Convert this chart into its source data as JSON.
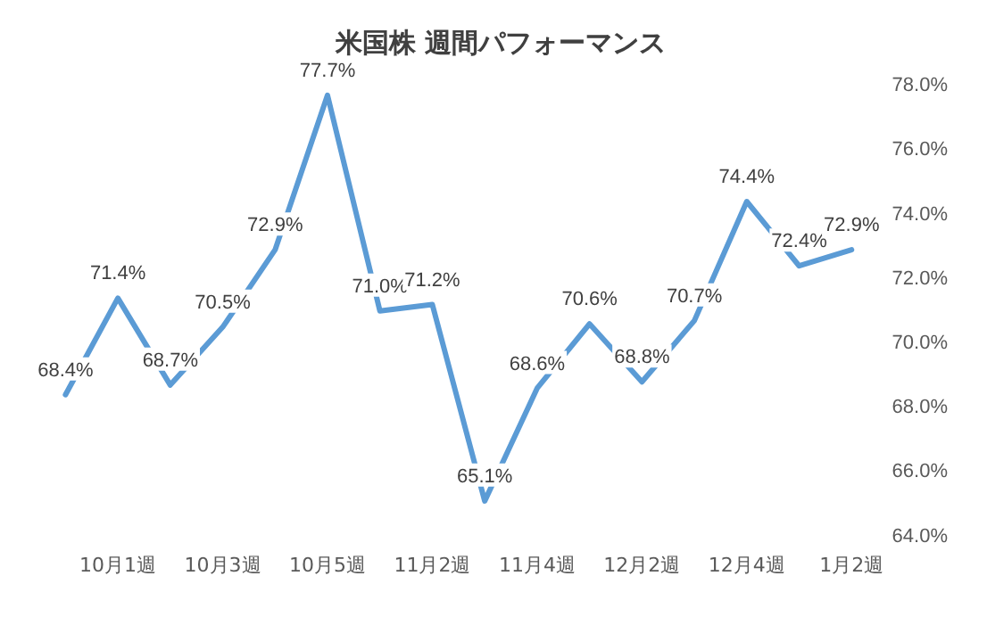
{
  "chart_data": {
    "type": "line",
    "title": "米国株 週間パフォーマンス",
    "categories": [
      null,
      "10月1週",
      null,
      "10月3週",
      null,
      "10月5週",
      null,
      "11月2週",
      null,
      "11月4週",
      null,
      "12月2週",
      null,
      "12月4週",
      null,
      "1月2週"
    ],
    "series": [
      {
        "color": "#5b9bd5",
        "values": [
          68.4,
          71.4,
          68.7,
          70.5,
          72.9,
          77.7,
          71.0,
          71.2,
          65.1,
          68.6,
          70.6,
          68.8,
          70.7,
          74.4,
          72.4,
          72.9
        ],
        "value_labels": [
          "68.4%",
          "71.4%",
          "68.7%",
          "70.5%",
          "72.9%",
          "77.7%",
          "71.0%",
          "71.2%",
          "65.1%",
          "68.6%",
          "70.6%",
          "68.8%",
          "70.7%",
          "74.4%",
          "72.4%",
          "72.9%"
        ]
      }
    ],
    "ylim": [
      64,
      78
    ],
    "yticks": [
      {
        "value": 64,
        "label": "64.0%"
      },
      {
        "value": 66,
        "label": "66.0%"
      },
      {
        "value": 68,
        "label": "68.0%"
      },
      {
        "value": 70,
        "label": "70.0%"
      },
      {
        "value": 72,
        "label": "72.0%"
      },
      {
        "value": 74,
        "label": "74.0%"
      },
      {
        "value": 76,
        "label": "76.0%"
      },
      {
        "value": 78,
        "label": "78.0%"
      }
    ],
    "grid": false,
    "legend": false,
    "marker": "none",
    "line_style": "solid"
  }
}
